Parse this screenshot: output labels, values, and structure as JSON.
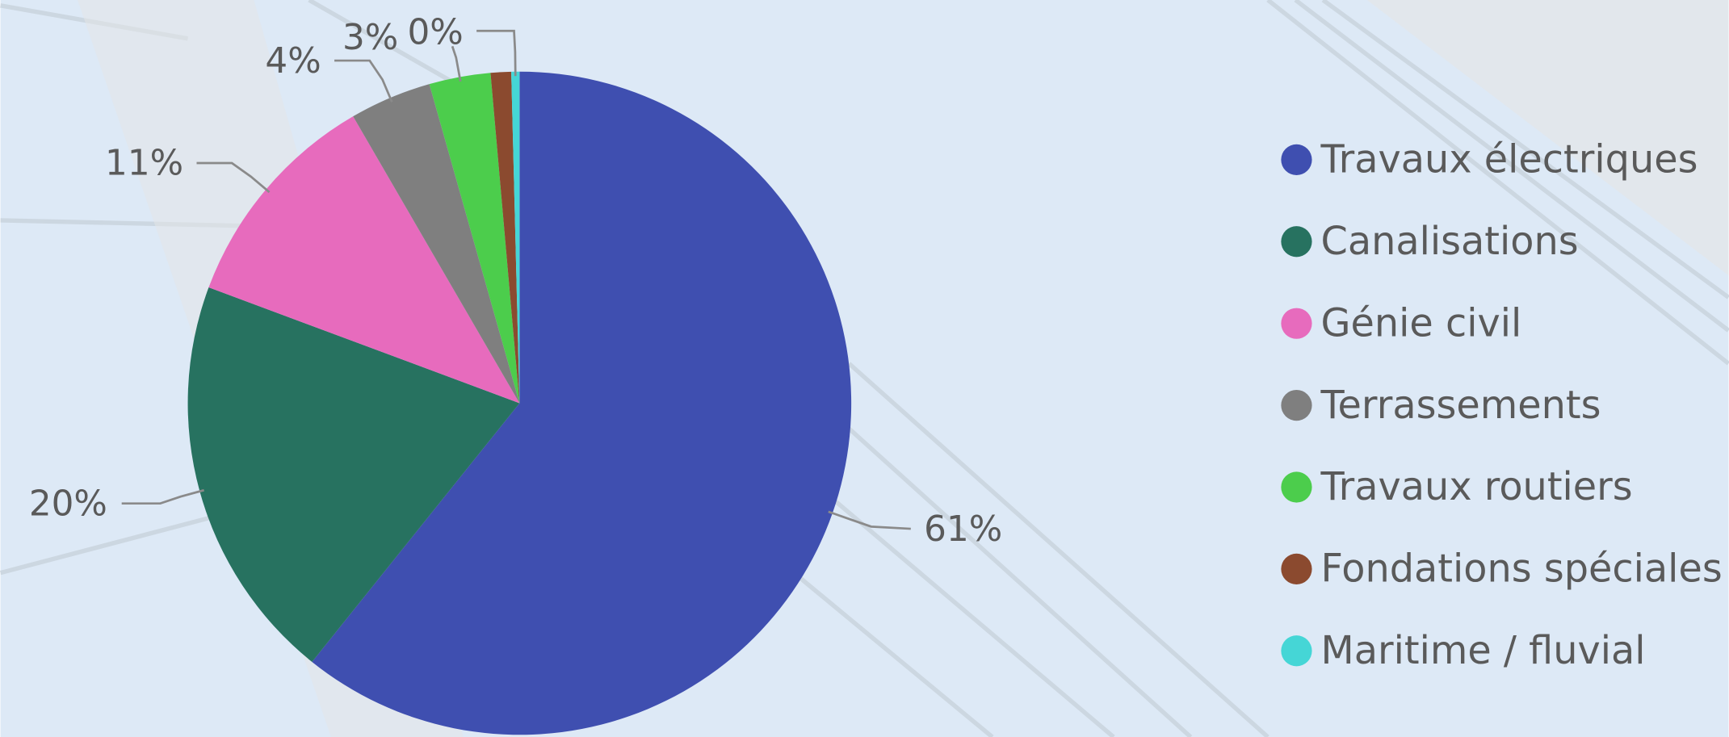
{
  "chart_data": {
    "type": "pie",
    "categories": [
      "Travaux électriques",
      "Canalisations",
      "Génie civil",
      "Terrassements",
      "Travaux routiers",
      "Fondations spéciales",
      "Maritime / fluvial"
    ],
    "values": [
      61,
      20,
      11,
      4,
      3,
      1,
      0.4
    ],
    "value_labels": [
      "61%",
      "20%",
      "11%",
      "4%",
      "3%",
      null,
      "0%"
    ],
    "colors": [
      "#3f4fb0",
      "#277260",
      "#e76bbd",
      "#7f7f7f",
      "#4ccd4c",
      "#8b4a2f",
      "#45d6d6"
    ],
    "legend": "right"
  }
}
